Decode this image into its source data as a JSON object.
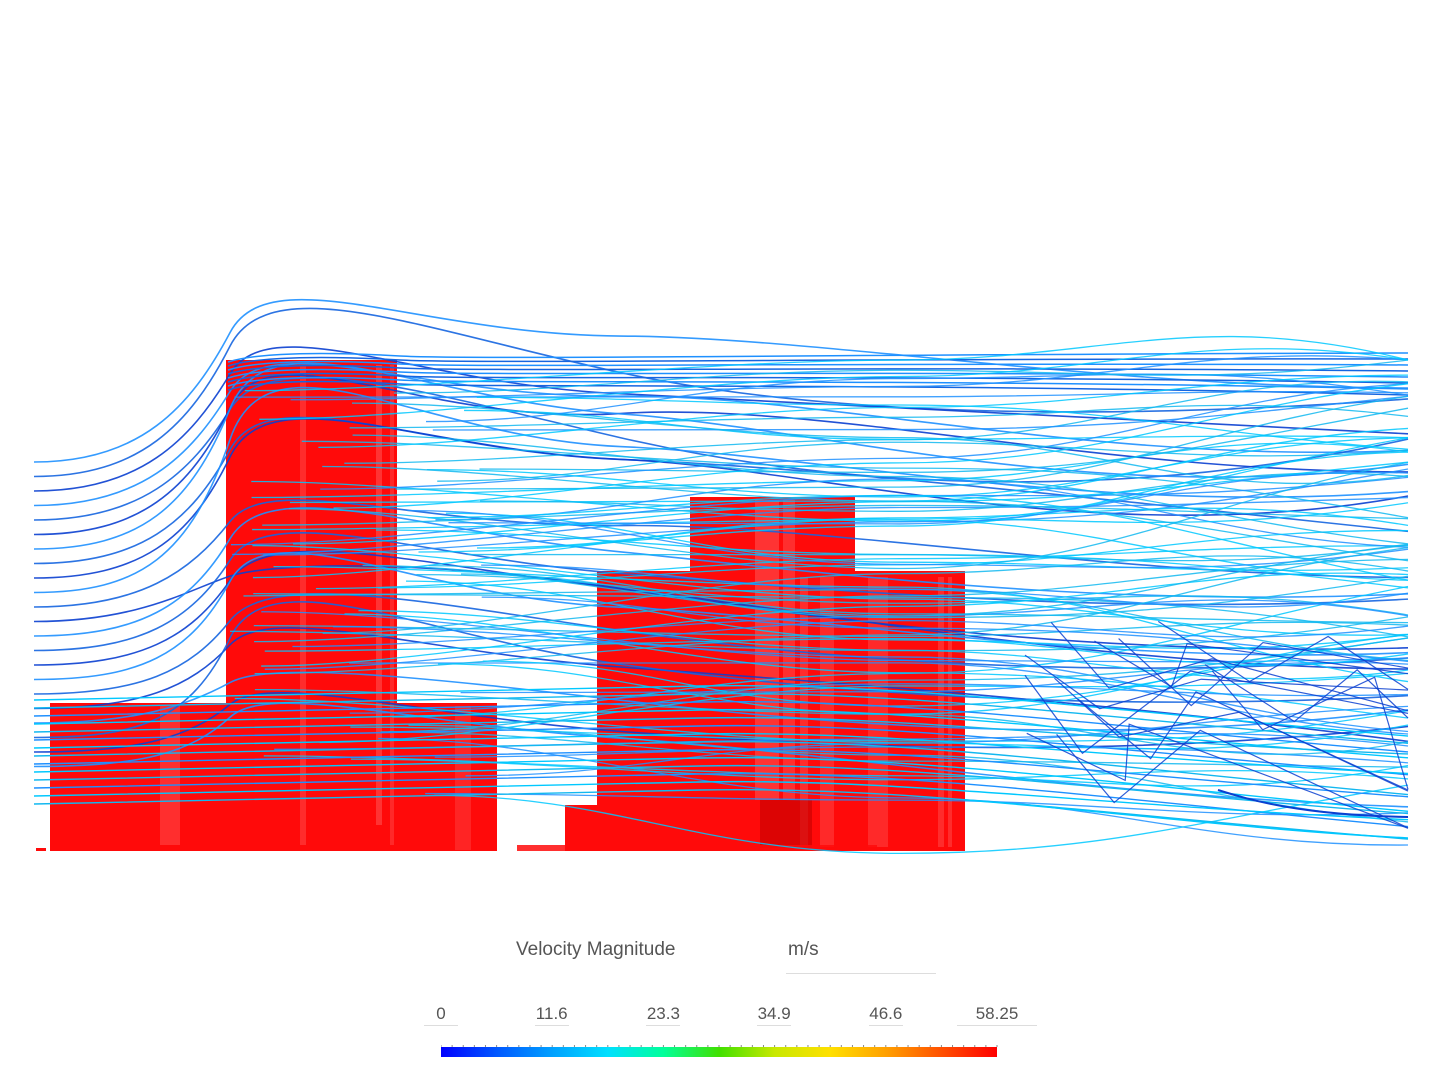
{
  "legend": {
    "title": "Velocity Magnitude",
    "unit": "m/s",
    "min": 0,
    "max": 58.25,
    "tick_labels": [
      "0",
      "11.6",
      "23.3",
      "34.9",
      "46.6",
      "58.25"
    ],
    "tick_values": [
      0,
      11.6,
      23.3,
      34.9,
      46.6,
      58.25
    ],
    "colormap": [
      "#0000ff",
      "#0057ff",
      "#00a0ff",
      "#00e0ff",
      "#00ff9a",
      "#40e000",
      "#c8e800",
      "#ffe000",
      "#ffa000",
      "#ff5000",
      "#ff0000"
    ]
  },
  "scene": {
    "building_color": "#ff0a0a",
    "streamline_colors": [
      "#00c8ff",
      "#12b8f0",
      "#1e90ff",
      "#1565e0",
      "#0a3fd0"
    ]
  }
}
